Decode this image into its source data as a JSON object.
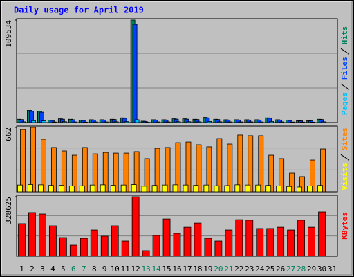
{
  "chart_data": [
    {
      "type": "bar",
      "title": "Daily usage for April 2019",
      "series": [
        {
          "name": "Hits",
          "color": "#00805c",
          "values": [
            3500,
            13000,
            12000,
            2500,
            4000,
            3500,
            2500,
            3000,
            3000,
            3500,
            5000,
            109534,
            1500,
            3000,
            3000,
            4000,
            4000,
            3500,
            5500,
            3500,
            3000,
            3000,
            3000,
            3000,
            5000,
            3000,
            2500,
            2000,
            2000,
            3500,
            0
          ]
        },
        {
          "name": "Files",
          "color": "#0040ff",
          "values": [
            3200,
            12000,
            11000,
            2200,
            3600,
            3000,
            2200,
            2700,
            2700,
            3200,
            4500,
            105000,
            1200,
            2700,
            2700,
            3600,
            3600,
            3200,
            5000,
            3200,
            2700,
            2700,
            2700,
            2700,
            4600,
            2700,
            2200,
            1800,
            1800,
            3200,
            0
          ]
        },
        {
          "name": "Pages",
          "color": "#00c0ff",
          "values": [
            800,
            2000,
            1800,
            600,
            900,
            700,
            500,
            700,
            700,
            800,
            1000,
            3000,
            400,
            700,
            700,
            900,
            900,
            800,
            1200,
            800,
            700,
            700,
            700,
            700,
            1100,
            700,
            600,
            500,
            500,
            800,
            0
          ]
        }
      ],
      "ylim": [
        0,
        109534
      ],
      "yticks": [
        109534
      ]
    },
    {
      "type": "bar",
      "series": [
        {
          "name": "Sites",
          "color": "#ff8000",
          "values": [
            640,
            662,
            541,
            456,
            420,
            377,
            456,
            391,
            405,
            398,
            398,
            413,
            342,
            448,
            456,
            505,
            512,
            484,
            463,
            548,
            491,
            584,
            577,
            577,
            377,
            342,
            192,
            157,
            327,
            441,
            0
          ]
        },
        {
          "name": "Visits",
          "color": "#ffff00",
          "values": [
            70,
            75,
            72,
            66,
            68,
            60,
            62,
            70,
            72,
            68,
            70,
            74,
            58,
            66,
            70,
            72,
            70,
            68,
            70,
            62,
            64,
            72,
            70,
            70,
            66,
            60,
            55,
            50,
            60,
            66,
            0
          ]
        }
      ],
      "ylim": [
        0,
        662
      ],
      "yticks": [
        662
      ]
    },
    {
      "type": "bar",
      "series": [
        {
          "name": "KBytes",
          "color": "#ff0000",
          "values": [
            179700,
            240900,
            233000,
            168000,
            103000,
            61000,
            99000,
            145000,
            111000,
            168000,
            84000,
            328625,
            30600,
            114700,
            206000,
            126000,
            160000,
            183000,
            99000,
            84000,
            145000,
            202000,
            199000,
            153000,
            153000,
            160000,
            145000,
            199000,
            160000,
            244500,
            0
          ]
        }
      ],
      "ylim": [
        0,
        328625
      ],
      "yticks": [
        328625
      ],
      "categories": [
        "1",
        "2",
        "3",
        "4",
        "5",
        "6",
        "7",
        "8",
        "9",
        "10",
        "11",
        "12",
        "13",
        "14",
        "15",
        "16",
        "17",
        "18",
        "19",
        "20",
        "21",
        "22",
        "23",
        "24",
        "25",
        "26",
        "27",
        "28",
        "29",
        "30",
        "31"
      ],
      "label_colors": [
        "#000000",
        "#000000",
        "#000000",
        "#000000",
        "#000000",
        "#00805c",
        "#00805c",
        "#000000",
        "#000000",
        "#000000",
        "#000000",
        "#000000",
        "#00805c",
        "#00805c",
        "#000000",
        "#000000",
        "#000000",
        "#000000",
        "#000000",
        "#00805c",
        "#00805c",
        "#000000",
        "#000000",
        "#000000",
        "#000000",
        "#000000",
        "#00805c",
        "#00805c",
        "#000000",
        "#000000",
        "#000000"
      ]
    }
  ]
}
